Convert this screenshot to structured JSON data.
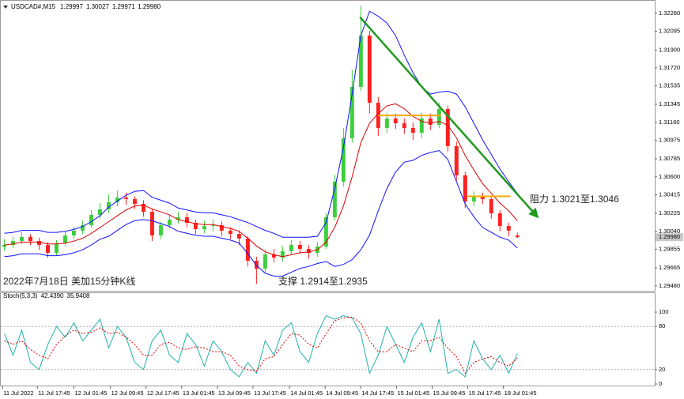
{
  "chart_data": [
    {
      "type": "candlestick",
      "title": "USDCAD#,M15",
      "readout": [
        {
          "value": 1.29997,
          "label": "1.29997"
        },
        {
          "value": 1.30027,
          "label": "1.30027"
        },
        {
          "value": 1.29971,
          "label": "1.29971"
        },
        {
          "value": 1.2998,
          "label": "1.29980"
        }
      ],
      "open": [
        1.2988,
        1.29901,
        1.29941,
        1.29982,
        1.29941,
        1.29901,
        1.29819,
        1.29917,
        1.29998,
        1.30047,
        1.30103,
        1.30209,
        1.30266,
        1.30339,
        1.30387,
        1.30372,
        1.30323,
        1.30241,
        1.29998,
        1.30103,
        1.3016,
        1.30185,
        1.30128,
        1.30063,
        1.30095,
        1.30103,
        1.30047,
        1.30014,
        1.29966,
        1.29738,
        1.29657,
        1.29803,
        1.29771,
        1.29836,
        1.29901,
        1.2986,
        1.29819,
        1.29884,
        1.30185,
        1.3055,
        1.30996,
        1.31524,
        1.32051,
        1.31361,
        1.31102,
        1.31199,
        1.3115,
        1.31102,
        1.31053,
        1.31199,
        1.31134,
        1.31296,
        1.30915,
        1.30615,
        1.30347,
        1.30404,
        1.30371,
        1.30225,
        1.30095,
        1.29997
      ],
      "high": [
        1.2996,
        1.29985,
        1.3003,
        1.3001,
        1.29975,
        1.2993,
        1.2995,
        1.3004,
        1.3009,
        1.3015,
        1.3026,
        1.3033,
        1.3042,
        1.3046,
        1.3044,
        1.304,
        1.3036,
        1.3027,
        1.3014,
        1.3021,
        1.3024,
        1.3023,
        1.3016,
        1.3015,
        1.3016,
        1.3014,
        1.3008,
        1.3005,
        1.2999,
        1.2978,
        1.2985,
        1.2986,
        1.2989,
        1.2995,
        1.2994,
        1.299,
        1.2993,
        1.3023,
        1.3062,
        1.311,
        1.317,
        1.3236,
        1.321,
        1.3142,
        1.3126,
        1.3125,
        1.312,
        1.3116,
        1.3126,
        1.3125,
        1.3136,
        1.3133,
        1.3096,
        1.3065,
        1.3045,
        1.3044,
        1.304,
        1.3026,
        1.3013,
        1.30027
      ],
      "low": [
        1.2984,
        1.2987,
        1.2991,
        1.299,
        1.2985,
        1.2977,
        1.2979,
        1.2989,
        1.2996,
        1.3001,
        1.3008,
        1.3017,
        1.3023,
        1.303,
        1.3031,
        1.3027,
        1.3019,
        1.2994,
        1.2996,
        1.3007,
        1.3012,
        1.3008,
        1.3001,
        1.3002,
        1.3004,
        1.2999,
        1.2996,
        1.299,
        1.2968,
        1.295,
        1.2962,
        1.2972,
        1.2973,
        1.298,
        1.2981,
        1.2976,
        1.2978,
        1.2986,
        1.3015,
        1.305,
        1.3095,
        1.3148,
        1.3125,
        1.3102,
        1.3105,
        1.3109,
        1.3104,
        1.3098,
        1.31,
        1.3108,
        1.311,
        1.3086,
        1.3056,
        1.3028,
        1.303,
        1.3032,
        1.3017,
        1.3004,
        1.2999,
        1.29971
      ],
      "close": [
        1.29901,
        1.29941,
        1.29982,
        1.29941,
        1.29901,
        1.29819,
        1.29917,
        1.29998,
        1.30047,
        1.30103,
        1.30209,
        1.30266,
        1.30339,
        1.30387,
        1.30372,
        1.30323,
        1.30241,
        1.29998,
        1.30103,
        1.3016,
        1.30185,
        1.30128,
        1.30063,
        1.30095,
        1.30103,
        1.30047,
        1.30014,
        1.29966,
        1.29738,
        1.29657,
        1.29803,
        1.29771,
        1.29836,
        1.29901,
        1.2986,
        1.29819,
        1.29884,
        1.30185,
        1.3055,
        1.30996,
        1.31524,
        1.32051,
        1.31361,
        1.31102,
        1.31199,
        1.3115,
        1.31102,
        1.31053,
        1.31199,
        1.31134,
        1.31296,
        1.30915,
        1.30615,
        1.30347,
        1.30404,
        1.30371,
        1.30225,
        1.30095,
        1.30047,
        1.2998
      ],
      "up_color": "#3ccf3c",
      "down_color": "#ff2020",
      "overlays": [
        {
          "color": "#1010ff",
          "values": [
            1.3002,
            1.3003,
            1.3005,
            1.3005,
            1.3005,
            1.3003,
            1.3003,
            1.3004,
            1.3006,
            1.3009,
            1.3014,
            1.302,
            1.3029,
            1.3035,
            1.3041,
            1.3045,
            1.3046,
            1.3039,
            1.3036,
            1.3033,
            1.3028,
            1.3026,
            1.3024,
            1.3023,
            1.3023,
            1.3021,
            1.3019,
            1.3016,
            1.3013,
            1.3009,
            1.3005,
            1.3002,
            1.2998,
            1.2998,
            1.2998,
            1.2998,
            1.2999,
            1.3013,
            1.3048,
            1.309,
            1.3145,
            1.3205,
            1.323,
            1.3225,
            1.3218,
            1.3205,
            1.3185,
            1.3167,
            1.3152,
            1.3145,
            1.3147,
            1.3148,
            1.3145,
            1.3132,
            1.3115,
            1.3098,
            1.3083,
            1.3068,
            1.3055,
            1.3043
          ]
        },
        {
          "color": "#e00000",
          "values": [
            1.299,
            1.2991,
            1.2993,
            1.2993,
            1.2993,
            1.2991,
            1.2991,
            1.2992,
            1.2994,
            1.2997,
            1.3002,
            1.3008,
            1.3014,
            1.302,
            1.3026,
            1.303,
            1.3031,
            1.3027,
            1.3024,
            1.3021,
            1.3016,
            1.3014,
            1.3012,
            1.3011,
            1.3011,
            1.3009,
            1.3007,
            1.3004,
            1.2997,
            1.2989,
            1.2983,
            1.298,
            1.2978,
            1.298,
            1.2982,
            1.2983,
            1.2985,
            1.2993,
            1.3008,
            1.303,
            1.306,
            1.3095,
            1.3115,
            1.3125,
            1.3133,
            1.3135,
            1.313,
            1.3122,
            1.3117,
            1.3115,
            1.3117,
            1.3113,
            1.31,
            1.3082,
            1.3067,
            1.3053,
            1.3043,
            1.3033,
            1.3025,
            1.3015
          ]
        },
        {
          "color": "#1010ff",
          "values": [
            1.2978,
            1.2979,
            1.2981,
            1.2981,
            1.2981,
            1.2979,
            1.2979,
            1.298,
            1.2982,
            1.2985,
            1.299,
            1.2996,
            1.2999,
            1.3005,
            1.3011,
            1.3015,
            1.3016,
            1.3015,
            1.3012,
            1.3009,
            1.3004,
            1.3002,
            1.3,
            1.2999,
            1.2999,
            1.2997,
            1.2995,
            1.2992,
            1.2981,
            1.2969,
            1.2961,
            1.2958,
            1.2958,
            1.2962,
            1.2966,
            1.2968,
            1.2971,
            1.2973,
            1.2968,
            1.297,
            1.2975,
            1.2985,
            1.3,
            1.3025,
            1.3048,
            1.3065,
            1.3075,
            1.3077,
            1.3082,
            1.3085,
            1.3087,
            1.3078,
            1.3055,
            1.3032,
            1.3019,
            1.3008,
            1.3003,
            1.2998,
            1.2995,
            1.2987
          ]
        }
      ],
      "xlim": [
        -0.5,
        74.8
      ],
      "ylim": [
        1.2943,
        1.324
      ],
      "yticks": [
        {
          "value": 1.3228,
          "label": "1.32280"
        },
        1.32095,
        {
          "value": 1.319,
          "label": "1.31900"
        },
        {
          "value": 1.3172,
          "label": "1.31720"
        },
        1.31535,
        1.31345,
        {
          "value": 1.3116,
          "label": "1.31160"
        },
        1.30975,
        1.30785,
        {
          "value": 1.306,
          "label": "1.30600"
        },
        1.30415,
        1.30225,
        {
          "value": 1.3004,
          "label": "1.30040"
        },
        1.29855,
        1.29665,
        {
          "value": 1.2948,
          "label": "1.29480"
        }
      ],
      "last_price": {
        "value": 1.2998,
        "label": "1.29980"
      },
      "drawings": [
        {
          "type": "trendline",
          "color": "#1e9a1e",
          "x": [
            40.9,
            61.3
          ],
          "y": [
            1.3224,
            1.3019
          ]
        },
        {
          "type": "hline",
          "color": "#ffaa00",
          "x": [
            43.0,
            50.2
          ],
          "y": [
            1.3123,
            1.3123
          ]
        },
        {
          "type": "hline",
          "color": "#ffaa00",
          "x": [
            53.3,
            58.2
          ],
          "y": [
            1.304,
            1.304
          ]
        }
      ],
      "annotations": [
        "阻力 1.3021至1.3046",
        "支撑 1.2914至1.2935",
        "2022年7月18日 美加15分钟K线"
      ]
    },
    {
      "type": "line",
      "title": "Stoch(5,3,3)",
      "readout": [
        {
          "value": 42.439,
          "label": "42.4390"
        },
        35.9408
      ],
      "series": [
        {
          "color": "#20b2aa",
          "values": [
            70,
            40,
            75,
            30,
            20,
            55,
            80,
            65,
            85,
            60,
            75,
            90,
            50,
            80,
            65,
            30,
            20,
            60,
            75,
            40,
            30,
            70,
            55,
            25,
            60,
            45,
            20,
            10,
            30,
            15,
            60,
            40,
            75,
            85,
            45,
            30,
            70,
            95,
            90,
            95,
            92,
            70,
            15,
            40,
            80,
            55,
            30,
            65,
            85,
            45,
            90,
            15,
            20,
            10,
            60,
            35,
            20,
            40,
            15,
            42.439
          ]
        },
        {
          "color": "#e00000",
          "dashed": true,
          "values": [
            60,
            55,
            60,
            48,
            40,
            35,
            55,
            67,
            75,
            70,
            72,
            78,
            70,
            72,
            65,
            55,
            40,
            40,
            55,
            58,
            50,
            48,
            52,
            50,
            45,
            45,
            40,
            25,
            20,
            18,
            35,
            38,
            55,
            70,
            68,
            55,
            50,
            70,
            88,
            92,
            93,
            85,
            60,
            45,
            45,
            55,
            50,
            45,
            60,
            60,
            65,
            50,
            38,
            15,
            30,
            35,
            38,
            30,
            25,
            35.9408
          ]
        }
      ],
      "levels": [
        80,
        20
      ],
      "xlim": [
        -0.5,
        74.8
      ],
      "ylim": [
        0,
        100
      ],
      "yticks": [
        100,
        80,
        20,
        0
      ],
      "xticks": [
        {
          "value": -0.2,
          "label": "11 Jul 2022"
        },
        {
          "value": 3.8,
          "label": "11 Jul 17:45"
        },
        {
          "value": 8.0,
          "label": "12 Jul 01:45"
        },
        {
          "value": 12.2,
          "label": "12 Jul 09:45"
        },
        {
          "value": 16.3,
          "label": "12 Jul 17:45"
        },
        {
          "value": 20.4,
          "label": "13 Jul 01:45"
        },
        {
          "value": 24.5,
          "label": "13 Jul 09:45"
        },
        {
          "value": 28.6,
          "label": "13 Jul 17:45"
        },
        {
          "value": 32.8,
          "label": "14 Jul 01:45"
        },
        {
          "value": 36.9,
          "label": "14 Jul 09:45"
        },
        {
          "value": 41.0,
          "label": "14 Jul 17:45"
        },
        {
          "value": 45.1,
          "label": "15 Jul 01:45"
        },
        {
          "value": 49.2,
          "label": "15 Jul 09:45"
        },
        {
          "value": 53.3,
          "label": "15 Jul 17:45"
        },
        {
          "value": 57.4,
          "label": "18 Jul 01:45"
        }
      ]
    }
  ]
}
